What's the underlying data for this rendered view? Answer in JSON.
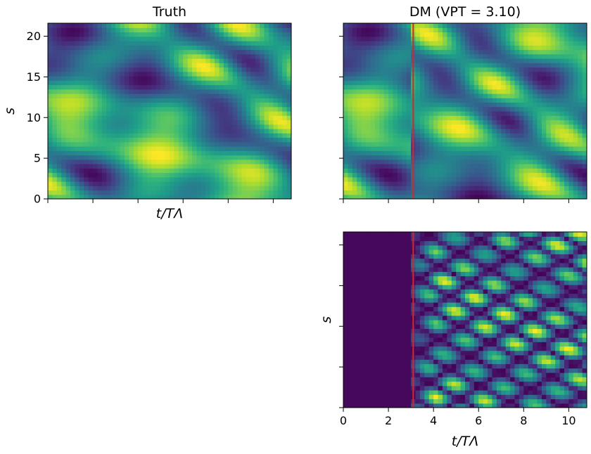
{
  "chart_data": [
    {
      "type": "heatmap",
      "panel": "truth",
      "title": "Truth",
      "xlabel": "t/TΛ",
      "ylabel": "s",
      "xlim": [
        0,
        10.8
      ],
      "ylim": [
        0,
        21.6
      ],
      "yticks": [
        0,
        5,
        10,
        15,
        20
      ],
      "colormap": "viridis"
    },
    {
      "type": "heatmap",
      "panel": "prediction",
      "title": "DM (VPT = 3.10)",
      "xlabel": "",
      "ylabel": "",
      "xlim": [
        0,
        10.8
      ],
      "ylim": [
        0,
        21.6
      ],
      "vpt_line": 3.1,
      "vpt_line_color": "#d62728",
      "colormap": "viridis"
    },
    {
      "type": "heatmap",
      "panel": "error",
      "title": "",
      "xlabel": "t/TΛ",
      "ylabel": "s",
      "xlim": [
        0,
        10.8
      ],
      "ylim": [
        0,
        21.6
      ],
      "xticks": [
        0,
        2,
        4,
        6,
        8,
        10
      ],
      "vpt_line": 3.1,
      "vpt_line_color": "#d62728",
      "colormap": "viridis"
    }
  ]
}
